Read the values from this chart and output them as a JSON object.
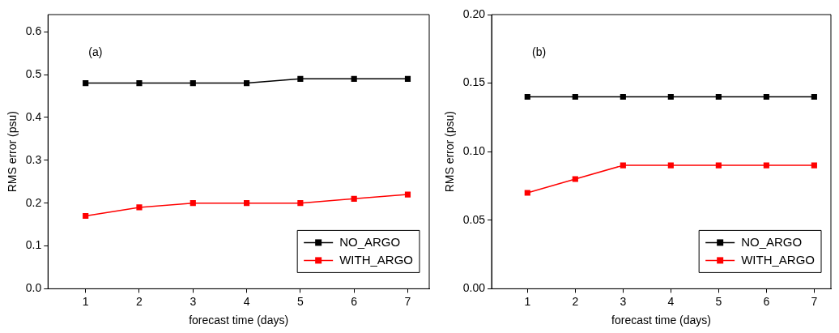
{
  "chart_data": [
    {
      "type": "line",
      "xlabel": "forecast time (days)",
      "ylabel": "RMS error (psu)",
      "annotations": [
        "(a)"
      ],
      "x": [
        1,
        2,
        3,
        4,
        5,
        6,
        7
      ],
      "xlim": [
        0.3,
        7.4
      ],
      "xticks": [
        1,
        2,
        3,
        4,
        5,
        6,
        7
      ],
      "ylim": [
        0,
        0.64
      ],
      "yticks": [
        {
          "value": 0,
          "label": "0.0"
        },
        0.1,
        0.2,
        0.3,
        0.4,
        0.5,
        0.6
      ],
      "grid": false,
      "legend": "bottom right",
      "marker": "square",
      "line_style": "solid",
      "series": [
        {
          "name": "NO_ARGO",
          "color": "#000000",
          "values": [
            0.48,
            0.48,
            0.48,
            0.48,
            0.49,
            0.49,
            0.49
          ]
        },
        {
          "name": "WITH_ARGO",
          "color": "#ff0000",
          "values": [
            0.17,
            0.19,
            0.2,
            0.2,
            0.2,
            0.21,
            0.22
          ]
        }
      ]
    },
    {
      "type": "line",
      "xlabel": "forecast time (days)",
      "ylabel": "RMS error (psu)",
      "annotations": [
        "(b)"
      ],
      "x": [
        1,
        2,
        3,
        4,
        5,
        6,
        7
      ],
      "xlim": [
        0.25,
        7.35
      ],
      "xticks": [
        1,
        2,
        3,
        4,
        5,
        6,
        7
      ],
      "ylim": [
        0,
        0.2
      ],
      "yticks": [
        {
          "value": 0,
          "label": "0.00"
        },
        {
          "value": 0.05,
          "label": "0.05"
        },
        {
          "value": 0.1,
          "label": "0.10"
        },
        {
          "value": 0.15,
          "label": "0.15"
        },
        {
          "value": 0.2,
          "label": "0.20"
        }
      ],
      "grid": false,
      "legend": "bottom right",
      "marker": "square",
      "line_style": "solid",
      "series": [
        {
          "name": "NO_ARGO",
          "color": "#000000",
          "values": [
            0.14,
            0.14,
            0.14,
            0.14,
            0.14,
            0.14,
            0.14
          ]
        },
        {
          "name": "WITH_ARGO",
          "color": "#ff0000",
          "values": [
            0.07,
            0.08,
            0.09,
            0.09,
            0.09,
            0.09,
            0.09
          ]
        }
      ]
    }
  ]
}
